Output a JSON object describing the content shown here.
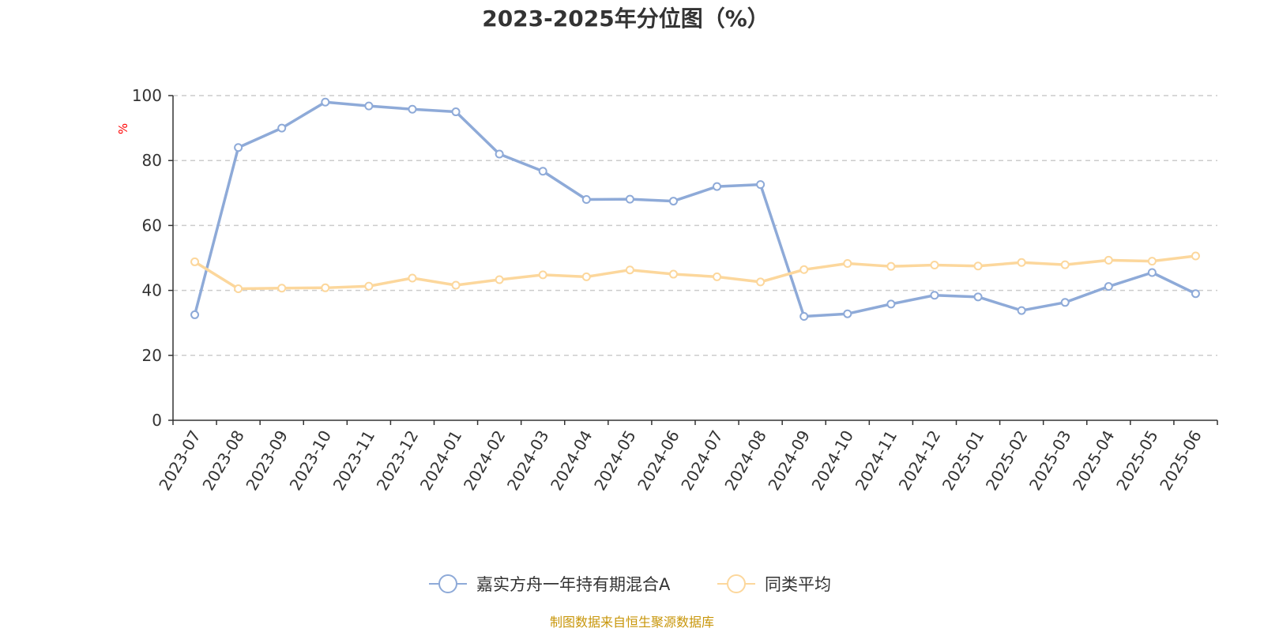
{
  "chart_data": {
    "type": "line",
    "title": "2023-2025年分位图（%）",
    "ylabel": "%",
    "xlabel": "",
    "ylim": [
      0,
      100
    ],
    "yticks": [
      0,
      20,
      40,
      60,
      80,
      100
    ],
    "grid": true,
    "legend_position": "bottom",
    "categories": [
      "2023-07",
      "2023-08",
      "2023-09",
      "2023-10",
      "2023-11",
      "2023-12",
      "2024-01",
      "2024-02",
      "2024-03",
      "2024-04",
      "2024-05",
      "2024-06",
      "2024-07",
      "2024-08",
      "2024-09",
      "2024-10",
      "2024-11",
      "2024-12",
      "2025-01",
      "2025-02",
      "2025-03",
      "2025-04",
      "2025-05",
      "2025-06"
    ],
    "series": [
      {
        "name": "嘉实方舟一年持有期混合A",
        "color": "#8eaad8",
        "values": [
          32.5,
          84,
          90,
          98,
          96.8,
          95.8,
          95,
          82,
          76.7,
          68,
          68.1,
          67.5,
          72,
          72.6,
          32,
          32.8,
          35.8,
          38.5,
          38,
          33.8,
          36.3,
          41.2,
          45.5,
          39
        ]
      },
      {
        "name": "同类平均",
        "color": "#fcd79c",
        "values": [
          48.8,
          40.5,
          40.7,
          40.8,
          41.3,
          43.8,
          41.6,
          43.3,
          44.8,
          44.2,
          46.3,
          45,
          44.2,
          42.6,
          46.4,
          48.3,
          47.4,
          47.8,
          47.5,
          48.6,
          47.9,
          49.3,
          49,
          50.6
        ]
      }
    ]
  },
  "footer": {
    "source": "制图数据来自恒生聚源数据库"
  }
}
